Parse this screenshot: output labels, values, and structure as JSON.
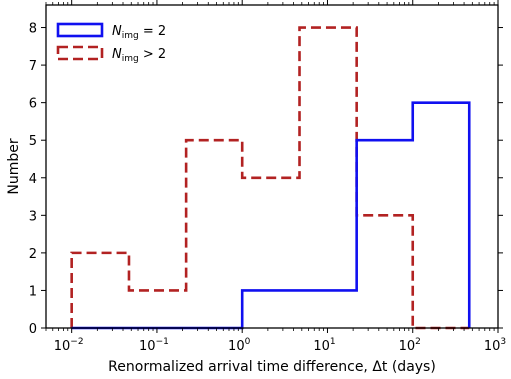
{
  "chart_data": {
    "type": "histogram",
    "x_scale": "log",
    "xlim": [
      0.005,
      1000
    ],
    "ylim": [
      0,
      8.6
    ],
    "xlabel": "Renormalized arrival time difference, Δt (days)",
    "ylabel": "Number",
    "x_ticks": [
      {
        "value": 0.01,
        "base": "10",
        "exp": "−2"
      },
      {
        "value": 0.1,
        "base": "10",
        "exp": "−1"
      },
      {
        "value": 1,
        "base": "10",
        "exp": "0"
      },
      {
        "value": 10,
        "base": "10",
        "exp": "1"
      },
      {
        "value": 100,
        "base": "10",
        "exp": "2"
      },
      {
        "value": 1000,
        "base": "10",
        "exp": "3"
      }
    ],
    "y_ticks": [
      0,
      1,
      2,
      3,
      4,
      5,
      6,
      7,
      8
    ],
    "legend_position": "top-left",
    "series": [
      {
        "name": "N_img = 2",
        "legend_main": "N",
        "legend_sub": "img",
        "legend_tail": " = 2",
        "color": "#1010f0",
        "style": "solid",
        "bin_edges": [
          0.01,
          0.047,
          0.22,
          1,
          4.7,
          22,
          100,
          460
        ],
        "counts": [
          0,
          0,
          0,
          1,
          1,
          5,
          6
        ]
      },
      {
        "name": "N_img > 2",
        "legend_main": "N",
        "legend_sub": "img",
        "legend_tail": " > 2",
        "color": "#b22222",
        "style": "dashed",
        "bin_edges": [
          0.01,
          0.047,
          0.22,
          1,
          4.7,
          22,
          100,
          460
        ],
        "counts": [
          2,
          1,
          5,
          4,
          8,
          3,
          0
        ]
      }
    ]
  }
}
